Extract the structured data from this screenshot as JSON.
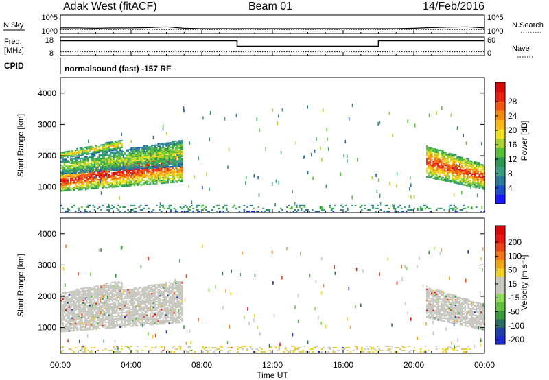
{
  "header": {
    "radar": "Adak West (fitACF)",
    "beam": "Beam 01",
    "date": "14/Feb/2016"
  },
  "panel_labels": {
    "nsky": "N.Sky",
    "nsearch": "N.Search",
    "freq_line1": "Freq.",
    "freq_line2": "[MHz]",
    "nave": "Nave",
    "cpid": "CPID",
    "cpid_text": "normalsound (fast) -157 RF"
  },
  "small_axes": {
    "noise_left_ticks": [
      "10^5",
      "10^0"
    ],
    "noise_right_ticks": [
      "10^5",
      "10^0"
    ],
    "freq_left_ticks": [
      "18",
      "8"
    ],
    "nave_right_ticks": [
      "60",
      "0"
    ]
  },
  "x_axis": {
    "label": "Time UT",
    "ticks": [
      "00:00",
      "04:00",
      "08:00",
      "12:00",
      "16:00",
      "20:00",
      "00:00"
    ]
  },
  "colorbars": {
    "power": {
      "label": "Power [dB]",
      "ticks": [
        "4",
        "8",
        "12",
        "16",
        "20",
        "24",
        "28"
      ],
      "colors": [
        "#1a1aff",
        "#2050c8",
        "#2e7a9a",
        "#3aa080",
        "#2c9a52",
        "#58c03a",
        "#a8d030",
        "#f0e020",
        "#f8b818",
        "#f58c10",
        "#f05a10",
        "#e82010",
        "#d80808"
      ]
    },
    "velocity": {
      "label": "Velocity [m s⁻¹]",
      "ticks": [
        "200",
        "100",
        "50",
        "15",
        "-15",
        "-50",
        "-100",
        "-200"
      ],
      "colors": [
        "#1c2ad0",
        "#2040a8",
        "#2c6e60",
        "#3d9a40",
        "#62c040",
        "#90d858",
        "#c8c8c0",
        "#c8c8c0",
        "#f0d020",
        "#f0a818",
        "#f07818",
        "#e84418",
        "#e81818",
        "#d80808"
      ]
    }
  },
  "chart_data": [
    {
      "type": "line",
      "title": "N.Sky / N.Search",
      "x": [
        0,
        1,
        2,
        3,
        4,
        5,
        6,
        7,
        8,
        9,
        10,
        11,
        12,
        13,
        14,
        15,
        16,
        17,
        18,
        19,
        20,
        21,
        22,
        23,
        24
      ],
      "series": [
        {
          "name": "N.Sky",
          "values": [
            1.5,
            1.5,
            1.4,
            1.5,
            1.5,
            1.6,
            1.8,
            1.4,
            1.3,
            1.3,
            1.3,
            1.3,
            1.3,
            1.3,
            1.3,
            1.3,
            1.3,
            1.3,
            1.3,
            1.3,
            1.4,
            1.6,
            1.7,
            1.8,
            1.5
          ]
        },
        {
          "name": "N.Search",
          "values": [
            1.0,
            1.0,
            1.0,
            1.0,
            1.0,
            1.0,
            1.0,
            1.0,
            1.0,
            1.0,
            1.0,
            1.0,
            1.0,
            1.0,
            1.0,
            1.0,
            1.0,
            1.0,
            1.0,
            1.0,
            1.0,
            1.0,
            1.0,
            1.0,
            1.0
          ]
        }
      ],
      "ylim": [
        0,
        5
      ],
      "yscale": "log"
    },
    {
      "type": "line",
      "title": "Freq. / Nave",
      "series": [
        {
          "name": "Freq.",
          "x": [
            0,
            10,
            10,
            18,
            18,
            24
          ],
          "values": [
            16,
            16,
            13,
            13,
            16,
            16
          ]
        },
        {
          "name": "Nave",
          "x": [
            0,
            24
          ],
          "values": [
            12,
            12
          ]
        }
      ],
      "ylim_freq": [
        8,
        18
      ],
      "ylim_nave": [
        0,
        60
      ]
    },
    {
      "type": "heatmap",
      "parameter": "Power",
      "unit": "dB",
      "xlim": [
        0,
        24
      ],
      "ylim": [
        180,
        4500
      ],
      "clim": [
        0,
        30
      ],
      "yticks": [
        1000,
        2000,
        3000,
        4000
      ],
      "ylabel": "Slant Range [km]",
      "xlabel": "Time UT",
      "regions": [
        {
          "t0": 0.0,
          "t1": 6.9,
          "r0_start": 850,
          "r1_start": 1450,
          "r0_end": 1150,
          "r1_end": 2400,
          "value": 24
        },
        {
          "t0": 0.0,
          "t1": 6.9,
          "r0_start": 1400,
          "r1_start": 1850,
          "r0_end": 1650,
          "r1_end": 2500,
          "value": 13
        },
        {
          "t0": 0.0,
          "t1": 3.5,
          "r0_start": 1900,
          "r1_start": 2100,
          "r0_end": 2200,
          "r1_end": 2500,
          "value": 16
        },
        {
          "t0": 20.7,
          "t1": 24.0,
          "r0_start": 1300,
          "r1_start": 2300,
          "r0_end": 900,
          "r1_end": 1700,
          "value": 22
        },
        {
          "t0": 0.0,
          "t1": 24.0,
          "r0_start": 200,
          "r1_start": 420,
          "r0_end": 200,
          "r1_end": 420,
          "value": 10,
          "sparse": true
        }
      ]
    },
    {
      "type": "heatmap",
      "parameter": "Velocity",
      "unit": "m s-1",
      "xlim": [
        0,
        24
      ],
      "ylim": [
        180,
        4500
      ],
      "clim": [
        -200,
        200
      ],
      "yticks": [
        1000,
        2000,
        3000,
        4000
      ],
      "ylabel": "Slant Range [km]",
      "xlabel": "Time UT",
      "regions": [
        {
          "t0": 0.0,
          "t1": 6.9,
          "r0_start": 850,
          "r1_start": 1900,
          "r0_end": 1150,
          "r1_end": 2500,
          "value": 0
        },
        {
          "t0": 0.0,
          "t1": 3.5,
          "r0_start": 1900,
          "r1_start": 2100,
          "r0_end": 2200,
          "r1_end": 2500,
          "value": 0
        },
        {
          "t0": 20.7,
          "t1": 24.0,
          "r0_start": 1300,
          "r1_start": 2300,
          "r0_end": 900,
          "r1_end": 1700,
          "value": 0
        },
        {
          "t0": 0.0,
          "t1": 24.0,
          "r0_start": 200,
          "r1_start": 420,
          "r0_end": 200,
          "r1_end": 420,
          "value": 30,
          "sparse": true
        }
      ]
    }
  ]
}
